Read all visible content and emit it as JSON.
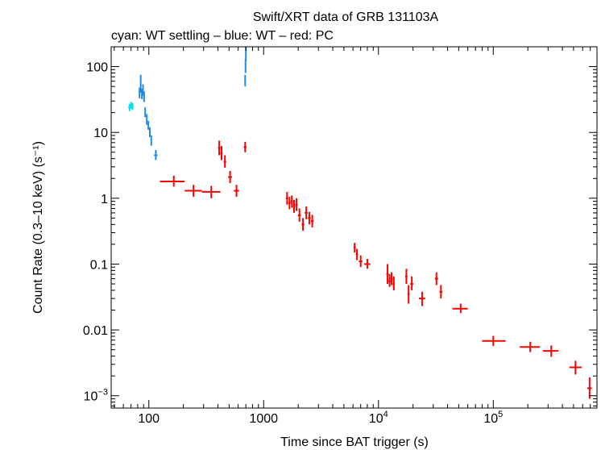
{
  "chart_data": {
    "type": "scatter",
    "title": "Swift/XRT data of GRB 131103A",
    "subtitle": "cyan: WT settling – blue: WT – red: PC",
    "xlabel": "Time since BAT trigger (s)",
    "ylabel": "Count Rate (0.3–10 keV) (s⁻¹)",
    "x_scale": "log",
    "y_scale": "log",
    "xlim": [
      47,
      800000
    ],
    "ylim": [
      0.00065,
      200
    ],
    "x_ticks": [
      {
        "value": 100,
        "label": "100"
      },
      {
        "value": 1000,
        "label": "1000"
      },
      {
        "value": 10000,
        "base": "10",
        "exp": "4"
      },
      {
        "value": 100000,
        "base": "10",
        "exp": "5"
      }
    ],
    "y_ticks": [
      {
        "value": 100,
        "label": "100"
      },
      {
        "value": 10,
        "label": "10"
      },
      {
        "value": 1,
        "label": "1"
      },
      {
        "value": 0.1,
        "label": "0.1"
      },
      {
        "value": 0.01,
        "label": "0.01"
      },
      {
        "value": 0.001,
        "base": "10",
        "exp": "−3"
      }
    ],
    "series": [
      {
        "color": "#00e5e5",
        "points": [
          {
            "x": 68,
            "xlo": 66,
            "xhi": 70,
            "y": 24,
            "ylo": 21,
            "yhi": 27
          },
          {
            "x": 70,
            "xlo": 69,
            "xhi": 72,
            "y": 26,
            "ylo": 23,
            "yhi": 29
          },
          {
            "x": 72,
            "xlo": 71,
            "xhi": 74,
            "y": 25,
            "ylo": 22,
            "yhi": 28
          }
        ]
      },
      {
        "color": "#1e8ce6",
        "points": [
          {
            "x": 83,
            "xlo": 82,
            "xhi": 84,
            "y": 40,
            "ylo": 33,
            "yhi": 48
          },
          {
            "x": 85,
            "xlo": 84,
            "xhi": 86,
            "y": 50,
            "ylo": 40,
            "yhi": 75
          },
          {
            "x": 87,
            "xlo": 86,
            "xhi": 88,
            "y": 38,
            "ylo": 32,
            "yhi": 46
          },
          {
            "x": 89,
            "xlo": 88,
            "xhi": 90,
            "y": 44,
            "ylo": 36,
            "yhi": 54
          },
          {
            "x": 91,
            "xlo": 90,
            "xhi": 92,
            "y": 35,
            "ylo": 29,
            "yhi": 42
          },
          {
            "x": 93,
            "xlo": 92,
            "xhi": 94,
            "y": 20,
            "ylo": 17,
            "yhi": 24
          },
          {
            "x": 96,
            "xlo": 95,
            "xhi": 97,
            "y": 16,
            "ylo": 13,
            "yhi": 19
          },
          {
            "x": 99,
            "xlo": 98,
            "xhi": 100,
            "y": 13,
            "ylo": 11,
            "yhi": 15
          },
          {
            "x": 102,
            "xlo": 101,
            "xhi": 103,
            "y": 10,
            "ylo": 8.5,
            "yhi": 12
          },
          {
            "x": 105,
            "xlo": 104,
            "xhi": 106,
            "y": 7.5,
            "ylo": 6.3,
            "yhi": 9
          },
          {
            "x": 115,
            "xlo": 111,
            "xhi": 119,
            "y": 4.5,
            "ylo": 3.8,
            "yhi": 5.4
          },
          {
            "x": 690,
            "xlo": 685,
            "xhi": 695,
            "y": 60,
            "ylo": 50,
            "yhi": 75
          },
          {
            "x": 695,
            "xlo": 691,
            "xhi": 699,
            "y": 100,
            "ylo": 80,
            "yhi": 130
          },
          {
            "x": 700,
            "xlo": 697,
            "xhi": 703,
            "y": 160,
            "ylo": 120,
            "yhi": 200
          }
        ]
      },
      {
        "color": "#ff0000",
        "points": [
          {
            "x": 165,
            "xlo": 125,
            "xhi": 205,
            "y": 1.8,
            "ylo": 1.5,
            "yhi": 2.2
          },
          {
            "x": 245,
            "xlo": 205,
            "xhi": 290,
            "y": 1.3,
            "ylo": 1.05,
            "yhi": 1.6
          },
          {
            "x": 350,
            "xlo": 290,
            "xhi": 420,
            "y": 1.25,
            "ylo": 1.0,
            "yhi": 1.55
          },
          {
            "x": 410,
            "xlo": 400,
            "xhi": 420,
            "y": 5.8,
            "ylo": 4.5,
            "yhi": 7.5
          },
          {
            "x": 430,
            "xlo": 420,
            "xhi": 440,
            "y": 4.8,
            "ylo": 3.8,
            "yhi": 6.2
          },
          {
            "x": 460,
            "xlo": 448,
            "xhi": 472,
            "y": 3.6,
            "ylo": 2.9,
            "yhi": 4.5
          },
          {
            "x": 510,
            "xlo": 490,
            "xhi": 530,
            "y": 2.1,
            "ylo": 1.7,
            "yhi": 2.6
          },
          {
            "x": 580,
            "xlo": 550,
            "xhi": 610,
            "y": 1.3,
            "ylo": 1.05,
            "yhi": 1.6
          },
          {
            "x": 690,
            "xlo": 670,
            "xhi": 710,
            "y": 6.0,
            "ylo": 5.0,
            "yhi": 7.2
          },
          {
            "x": 1600,
            "xlo": 1560,
            "xhi": 1640,
            "y": 1.0,
            "ylo": 0.8,
            "yhi": 1.25
          },
          {
            "x": 1680,
            "xlo": 1640,
            "xhi": 1720,
            "y": 0.85,
            "ylo": 0.68,
            "yhi": 1.05
          },
          {
            "x": 1760,
            "xlo": 1720,
            "xhi": 1800,
            "y": 0.9,
            "ylo": 0.72,
            "yhi": 1.1
          },
          {
            "x": 1840,
            "xlo": 1800,
            "xhi": 1880,
            "y": 0.75,
            "ylo": 0.6,
            "yhi": 0.95
          },
          {
            "x": 1930,
            "xlo": 1880,
            "xhi": 1980,
            "y": 0.8,
            "ylo": 0.64,
            "yhi": 1.0
          },
          {
            "x": 2050,
            "xlo": 1990,
            "xhi": 2110,
            "y": 0.55,
            "ylo": 0.44,
            "yhi": 0.7
          },
          {
            "x": 2200,
            "xlo": 2140,
            "xhi": 2260,
            "y": 0.4,
            "ylo": 0.32,
            "yhi": 0.5
          },
          {
            "x": 2350,
            "xlo": 2280,
            "xhi": 2420,
            "y": 0.6,
            "ylo": 0.48,
            "yhi": 0.75
          },
          {
            "x": 2500,
            "xlo": 2430,
            "xhi": 2570,
            "y": 0.5,
            "ylo": 0.4,
            "yhi": 0.62
          },
          {
            "x": 2650,
            "xlo": 2580,
            "xhi": 2720,
            "y": 0.45,
            "ylo": 0.36,
            "yhi": 0.56
          },
          {
            "x": 6200,
            "xlo": 6050,
            "xhi": 6350,
            "y": 0.18,
            "ylo": 0.15,
            "yhi": 0.21
          },
          {
            "x": 6500,
            "xlo": 6350,
            "xhi": 6650,
            "y": 0.14,
            "ylo": 0.115,
            "yhi": 0.17
          },
          {
            "x": 7000,
            "xlo": 6750,
            "xhi": 7250,
            "y": 0.11,
            "ylo": 0.09,
            "yhi": 0.135
          },
          {
            "x": 8000,
            "xlo": 7500,
            "xhi": 8500,
            "y": 0.1,
            "ylo": 0.085,
            "yhi": 0.12
          },
          {
            "x": 12000,
            "xlo": 11700,
            "xhi": 12300,
            "y": 0.07,
            "ylo": 0.05,
            "yhi": 0.1
          },
          {
            "x": 12500,
            "xlo": 12200,
            "xhi": 12800,
            "y": 0.055,
            "ylo": 0.045,
            "yhi": 0.07
          },
          {
            "x": 13000,
            "xlo": 12700,
            "xhi": 13300,
            "y": 0.06,
            "ylo": 0.048,
            "yhi": 0.075
          },
          {
            "x": 13600,
            "xlo": 13300,
            "xhi": 13900,
            "y": 0.05,
            "ylo": 0.04,
            "yhi": 0.065
          },
          {
            "x": 17500,
            "xlo": 17100,
            "xhi": 17900,
            "y": 0.065,
            "ylo": 0.05,
            "yhi": 0.085
          },
          {
            "x": 18300,
            "xlo": 17900,
            "xhi": 18700,
            "y": 0.035,
            "ylo": 0.025,
            "yhi": 0.048
          },
          {
            "x": 19500,
            "xlo": 18900,
            "xhi": 20100,
            "y": 0.05,
            "ylo": 0.04,
            "yhi": 0.065
          },
          {
            "x": 24000,
            "xlo": 22500,
            "xhi": 25500,
            "y": 0.03,
            "ylo": 0.023,
            "yhi": 0.038
          },
          {
            "x": 32000,
            "xlo": 31000,
            "xhi": 33000,
            "y": 0.06,
            "ylo": 0.048,
            "yhi": 0.075
          },
          {
            "x": 35000,
            "xlo": 34000,
            "xhi": 36000,
            "y": 0.038,
            "ylo": 0.03,
            "yhi": 0.048
          },
          {
            "x": 52000,
            "xlo": 44000,
            "xhi": 60000,
            "y": 0.021,
            "ylo": 0.018,
            "yhi": 0.025
          },
          {
            "x": 100000,
            "xlo": 80000,
            "xhi": 128000,
            "y": 0.0068,
            "ylo": 0.0057,
            "yhi": 0.0081
          },
          {
            "x": 210000,
            "xlo": 170000,
            "xhi": 255000,
            "y": 0.0055,
            "ylo": 0.0046,
            "yhi": 0.0066
          },
          {
            "x": 320000,
            "xlo": 270000,
            "xhi": 370000,
            "y": 0.0048,
            "ylo": 0.0039,
            "yhi": 0.0058
          },
          {
            "x": 520000,
            "xlo": 460000,
            "xhi": 590000,
            "y": 0.0027,
            "ylo": 0.0021,
            "yhi": 0.0034
          },
          {
            "x": 690000,
            "xlo": 660000,
            "xhi": 720000,
            "y": 0.0013,
            "ylo": 0.0009,
            "yhi": 0.0019
          }
        ]
      }
    ]
  }
}
